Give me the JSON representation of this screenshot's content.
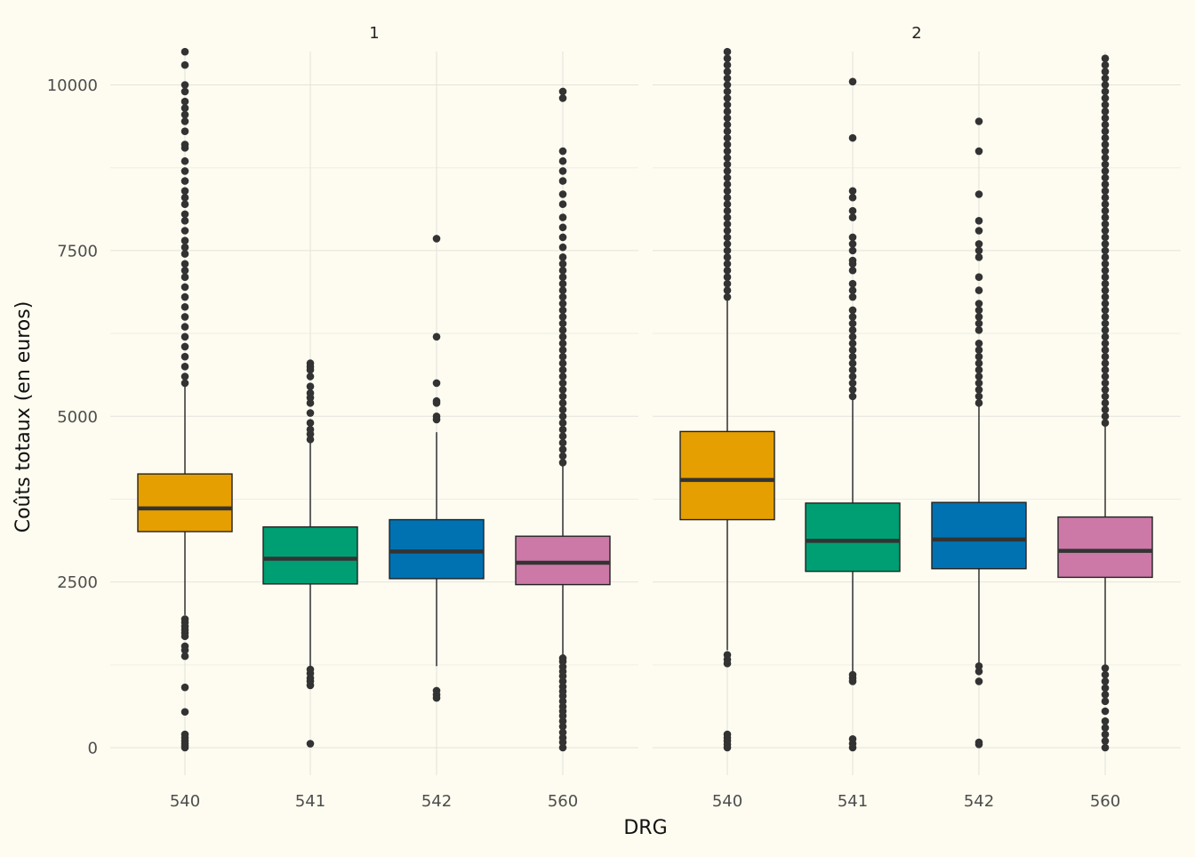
{
  "chart_data": {
    "type": "boxplot",
    "xlabel": "DRG",
    "ylabel": "Coûts totaux (en euros)",
    "ylim": [
      -500,
      10500
    ],
    "y_ticks": [
      0,
      2500,
      5000,
      7500,
      10000
    ],
    "y_tick_labels": [
      "0",
      "2500",
      "5000",
      "7500",
      "10000"
    ],
    "categories": [
      "540",
      "541",
      "542",
      "560"
    ],
    "category_colors": [
      "#E69F00",
      "#009E73",
      "#0072B2",
      "#CC79A7"
    ],
    "grid": true,
    "legend": "none",
    "panels": [
      {
        "label": "1",
        "boxes": [
          {
            "category": "540",
            "q1": 3260,
            "median": 3610,
            "q3": 4130,
            "whisker_low": 2000,
            "whisker_high": 5470,
            "outliers": [
              0,
              30,
              60,
              100,
              150,
              200,
              540,
              910,
              1380,
              1470,
              1530,
              1680,
              1730,
              1780,
              1830,
              1890,
              1940,
              5500,
              5600,
              5750,
              5900,
              6050,
              6200,
              6350,
              6500,
              6650,
              6800,
              6950,
              7100,
              7200,
              7300,
              7450,
              7550,
              7650,
              7800,
              7950,
              8050,
              8200,
              8300,
              8400,
              8550,
              8700,
              8850,
              9050,
              9100,
              9300,
              9450,
              9550,
              9650,
              9750,
              9900,
              10000,
              10300,
              10500
            ]
          },
          {
            "category": "541",
            "q1": 2470,
            "median": 2850,
            "q3": 3330,
            "whisker_low": 1150,
            "whisker_high": 4620,
            "outliers": [
              60,
              940,
              1000,
              1050,
              1120,
              1180,
              4650,
              4730,
              4800,
              4900,
              5050,
              5200,
              5280,
              5350,
              5450,
              5600,
              5700,
              5750,
              5800
            ]
          },
          {
            "category": "542",
            "q1": 2550,
            "median": 2960,
            "q3": 3440,
            "whisker_low": 1230,
            "whisker_high": 4760,
            "outliers": [
              750,
              800,
              860,
              4950,
              5000,
              5200,
              5230,
              5500,
              6200,
              7680
            ]
          },
          {
            "category": "560",
            "q1": 2460,
            "median": 2790,
            "q3": 3190,
            "whisker_low": 1390,
            "whisker_high": 4260,
            "outliers": [
              0,
              80,
              150,
              230,
              320,
              400,
              480,
              550,
              620,
              700,
              780,
              850,
              920,
              1000,
              1080,
              1150,
              1220,
              1300,
              1350,
              4300,
              4400,
              4500,
              4600,
              4700,
              4800,
              4900,
              5000,
              5100,
              5200,
              5300,
              5400,
              5500,
              5600,
              5700,
              5800,
              5900,
              6000,
              6100,
              6200,
              6300,
              6400,
              6500,
              6600,
              6700,
              6800,
              6900,
              7000,
              7100,
              7200,
              7300,
              7400,
              7550,
              7700,
              7850,
              8000,
              8200,
              8350,
              8550,
              8700,
              8850,
              9000,
              9800,
              9900
            ]
          }
        ]
      },
      {
        "label": "2",
        "boxes": [
          {
            "category": "540",
            "q1": 3440,
            "median": 4040,
            "q3": 4770,
            "whisker_low": 1470,
            "whisker_high": 6760,
            "outliers": [
              0,
              50,
              100,
              150,
              200,
              1270,
              1330,
              1400,
              6800,
              6900,
              7000,
              7100,
              7200,
              7300,
              7400,
              7500,
              7600,
              7700,
              7800,
              7900,
              8000,
              8100,
              8200,
              8300,
              8400,
              8500,
              8600,
              8700,
              8800,
              8900,
              9000,
              9100,
              9200,
              9300,
              9400,
              9500,
              9600,
              9700,
              9800,
              9900,
              10000,
              10100,
              10200,
              10300,
              10400,
              10500
            ]
          },
          {
            "category": "541",
            "q1": 2660,
            "median": 3120,
            "q3": 3690,
            "whisker_low": 1150,
            "whisker_high": 5260,
            "outliers": [
              0,
              60,
              130,
              1000,
              1050,
              1100,
              5300,
              5400,
              5500,
              5600,
              5700,
              5800,
              5900,
              6000,
              6100,
              6200,
              6300,
              6400,
              6500,
              6600,
              6800,
              6900,
              7000,
              7200,
              7300,
              7350,
              7500,
              7600,
              7700,
              8000,
              8100,
              8300,
              8400,
              9200,
              10050
            ]
          },
          {
            "category": "542",
            "q1": 2700,
            "median": 3140,
            "q3": 3700,
            "whisker_low": 1250,
            "whisker_high": 5180,
            "outliers": [
              50,
              80,
              1000,
              1150,
              1230,
              5200,
              5300,
              5400,
              5500,
              5600,
              5700,
              5800,
              5900,
              6000,
              6100,
              6300,
              6400,
              6500,
              6600,
              6700,
              6900,
              7100,
              7400,
              7500,
              7600,
              7800,
              7950,
              8350,
              9000,
              9450
            ]
          },
          {
            "category": "560",
            "q1": 2570,
            "median": 2970,
            "q3": 3480,
            "whisker_low": 1230,
            "whisker_high": 4850,
            "outliers": [
              0,
              100,
              200,
              300,
              400,
              550,
              700,
              800,
              900,
              1000,
              1100,
              1200,
              4900,
              5000,
              5100,
              5200,
              5300,
              5400,
              5500,
              5600,
              5700,
              5800,
              5900,
              6000,
              6100,
              6200,
              6300,
              6400,
              6500,
              6600,
              6700,
              6800,
              6900,
              7000,
              7100,
              7200,
              7300,
              7400,
              7500,
              7600,
              7700,
              7800,
              7900,
              8000,
              8100,
              8200,
              8300,
              8400,
              8500,
              8600,
              8700,
              8800,
              8900,
              9000,
              9100,
              9200,
              9300,
              9400,
              9500,
              9600,
              9700,
              9800,
              9900,
              10000,
              10100,
              10200,
              10300,
              10400
            ]
          }
        ]
      }
    ]
  }
}
